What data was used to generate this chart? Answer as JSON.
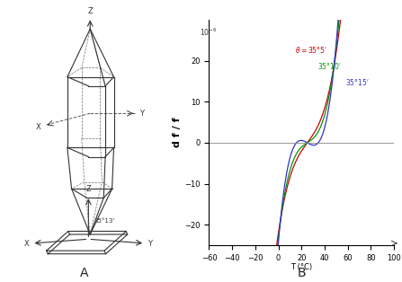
{
  "title_right": "B",
  "title_left": "A",
  "ylabel": "d f / f",
  "xlabel": "T (°C)",
  "yunits": "10^-6",
  "xlim": [
    -60,
    100
  ],
  "ylim": [
    -25,
    30
  ],
  "xticks": [
    -60,
    -40,
    -20,
    0,
    20,
    40,
    60,
    80,
    100
  ],
  "yticks": [
    -20,
    -10,
    0,
    10,
    20
  ],
  "curves": [
    {
      "label": "θ = 35°5'",
      "color": "#cc0000"
    },
    {
      "label": "35°10'",
      "color": "#009900"
    },
    {
      "label": "35°15'",
      "color": "#3333cc"
    }
  ],
  "crosspoint_x": 25,
  "crosspoint_y": 0,
  "bg_color": "#ffffff",
  "crystal_color": "#333333",
  "axis_color": "#333333"
}
